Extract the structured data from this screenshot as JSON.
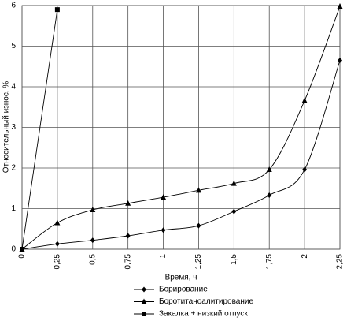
{
  "chart_data": {
    "type": "line",
    "x_label": "Время, ч",
    "y_label": "Относительный износ, %",
    "x": [
      0,
      0.25,
      0.5,
      0.75,
      1,
      1.25,
      1.5,
      1.75,
      2,
      2.25
    ],
    "series": [
      {
        "name": "Борирование",
        "color": "#000000",
        "marker": "diamond",
        "values": [
          0,
          0.13,
          0.22,
          0.33,
          0.47,
          0.58,
          0.93,
          1.33,
          1.96,
          4.65
        ]
      },
      {
        "name": "Боротитаноалитирование",
        "color": "#000000",
        "marker": "triangle",
        "values": [
          0,
          0.65,
          0.97,
          1.13,
          1.28,
          1.45,
          1.62,
          1.96,
          3.66,
          5.98
        ]
      },
      {
        "name": "Закалка + низкий отпуск",
        "color": "#000000",
        "marker": "square",
        "values": [
          0,
          5.9,
          null,
          null,
          null,
          null,
          null,
          null,
          null,
          null
        ]
      }
    ],
    "xlim": [
      0,
      2.25
    ],
    "xticks": [
      0,
      {
        "value": 0.25,
        "label": "0,25"
      },
      {
        "value": 0.5,
        "label": "0,5"
      },
      {
        "value": 0.75,
        "label": "0,75"
      },
      1,
      {
        "value": 1.25,
        "label": "1,25"
      },
      {
        "value": 1.5,
        "label": "1,5"
      },
      {
        "value": 1.75,
        "label": "1,75"
      },
      2,
      {
        "value": 2.25,
        "label": "2,25"
      }
    ],
    "ylim": [
      0,
      6
    ],
    "yticks": [
      0,
      1,
      2,
      3,
      4,
      5,
      6
    ],
    "grid": true,
    "legend": "bottom"
  }
}
